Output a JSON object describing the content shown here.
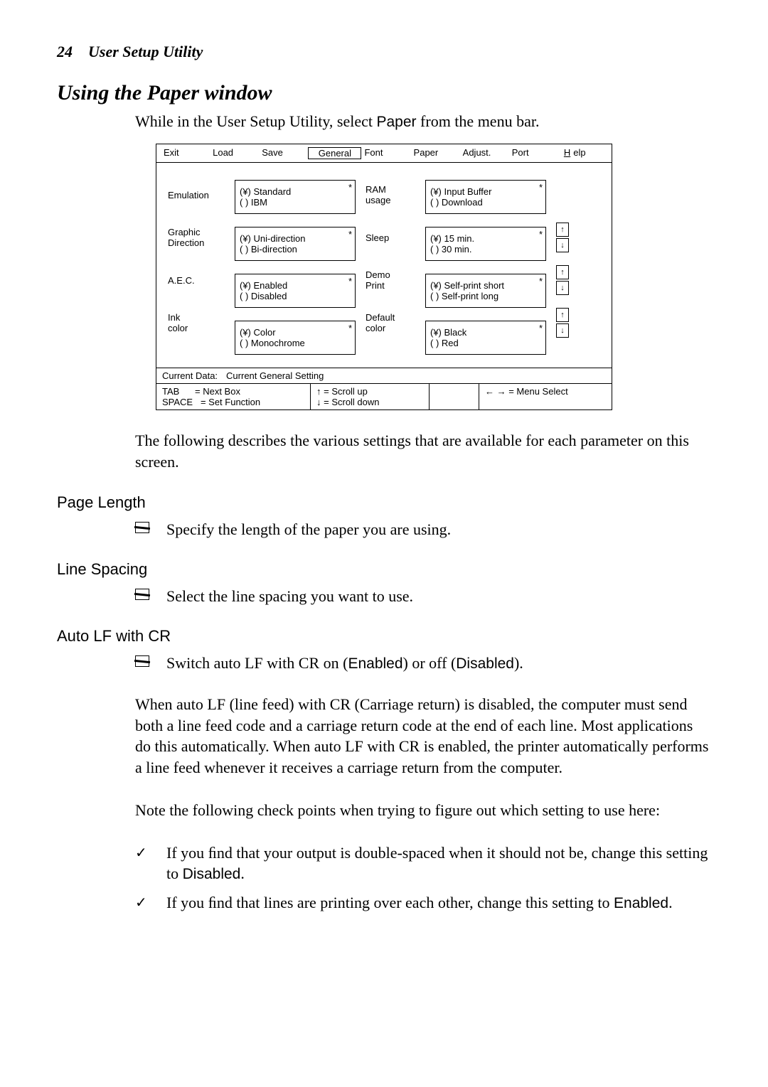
{
  "header": {
    "page_num": "24",
    "title": "User Setup Utility"
  },
  "section": {
    "title": "Using the Paper window"
  },
  "intro": {
    "prefix": "While in the User Setup Utility, select ",
    "menu_word": "Paper",
    "suffix": " from the menu bar."
  },
  "menubar": {
    "items": [
      "Exit",
      "Load",
      "Save",
      "General",
      "Font",
      "Paper",
      "Adjust.",
      "Port",
      "Help"
    ],
    "active_index": 3,
    "help_underline_index": 8
  },
  "settings": {
    "left": [
      {
        "label_lines": [
          "Emulation"
        ],
        "options": [
          "(¥)  Standard",
          "(  )  IBM"
        ],
        "arrows": false
      },
      {
        "label_lines": [
          "Graphic",
          "Direction"
        ],
        "options": [
          "(¥)  Uni-direction",
          "(  )  Bi-direction"
        ],
        "arrows": false
      },
      {
        "label_lines": [
          "A.E.C."
        ],
        "options": [
          "(¥)  Enabled",
          "(  )  Disabled"
        ],
        "arrows": false
      },
      {
        "label_lines": [
          "Ink",
          "color"
        ],
        "options": [
          "(¥)  Color",
          "(  )  Monochrome"
        ],
        "arrows": false
      }
    ],
    "right": [
      {
        "label_lines": [
          "RAM",
          "usage"
        ],
        "options": [
          "(¥)  Input Buffer",
          "(  )  Download"
        ],
        "arrows": false
      },
      {
        "label_lines": [
          "Sleep"
        ],
        "options": [
          "(¥)  15 min.",
          "(  )  30 min."
        ],
        "arrows": true
      },
      {
        "label_lines": [
          "Demo",
          "Print"
        ],
        "options": [
          "(¥)  Self-print short",
          "(  )  Self-print long"
        ],
        "arrows": true
      },
      {
        "label_lines": [
          "Default",
          "color"
        ],
        "options": [
          "(¥)  Black",
          "(  )  Red"
        ],
        "arrows": true
      }
    ],
    "star": "*",
    "arrow_up": "↑",
    "arrow_down": "↓"
  },
  "statusbar": {
    "current_label": "Current Data:",
    "current_value": "Current General Setting",
    "tab_label": "TAB",
    "tab_value": "= Next Box",
    "space_label": "SPACE",
    "space_value": "= Set Function",
    "scroll_up": "↑  = Scroll up",
    "scroll_down": "↓  = Scroll down",
    "menu_select": "←  → = Menu Select"
  },
  "body": {
    "para1": "The following describes the various settings that are available for each parameter on this screen."
  },
  "page_length": {
    "heading": "Page Length",
    "item": "Specify the length of the paper you are using."
  },
  "line_spacing": {
    "heading": "Line Spacing",
    "item": "Select the line spacing you want to use."
  },
  "auto_lf": {
    "heading": "Auto LF with CR",
    "item_prefix": "Switch auto LF with CR on (",
    "enabled": "Enabled",
    "item_mid": ") or off (",
    "disabled": "Disabled",
    "item_suffix": ").",
    "para2": "When auto LF (line feed) with CR (Carriage return) is disabled, the computer must send both a line feed code and a carriage return code at the end of each line. Most applications do this automatically. When auto LF with CR is enabled, the printer automatically performs a line feed whenever it receives a carriage return from the computer.",
    "para3": "Note the following check points when trying to figure out which setting to use here:",
    "check1_prefix": "If you ﬁnd that your output is double-spaced when it should not be, change this setting to ",
    "check1_word": "Disabled",
    "check1_suffix": ".",
    "check2_prefix": "If you ﬁnd that lines are printing over each other, change this setting to ",
    "check2_word": "Enabled",
    "check2_suffix": ".",
    "checkmark": "✓"
  }
}
